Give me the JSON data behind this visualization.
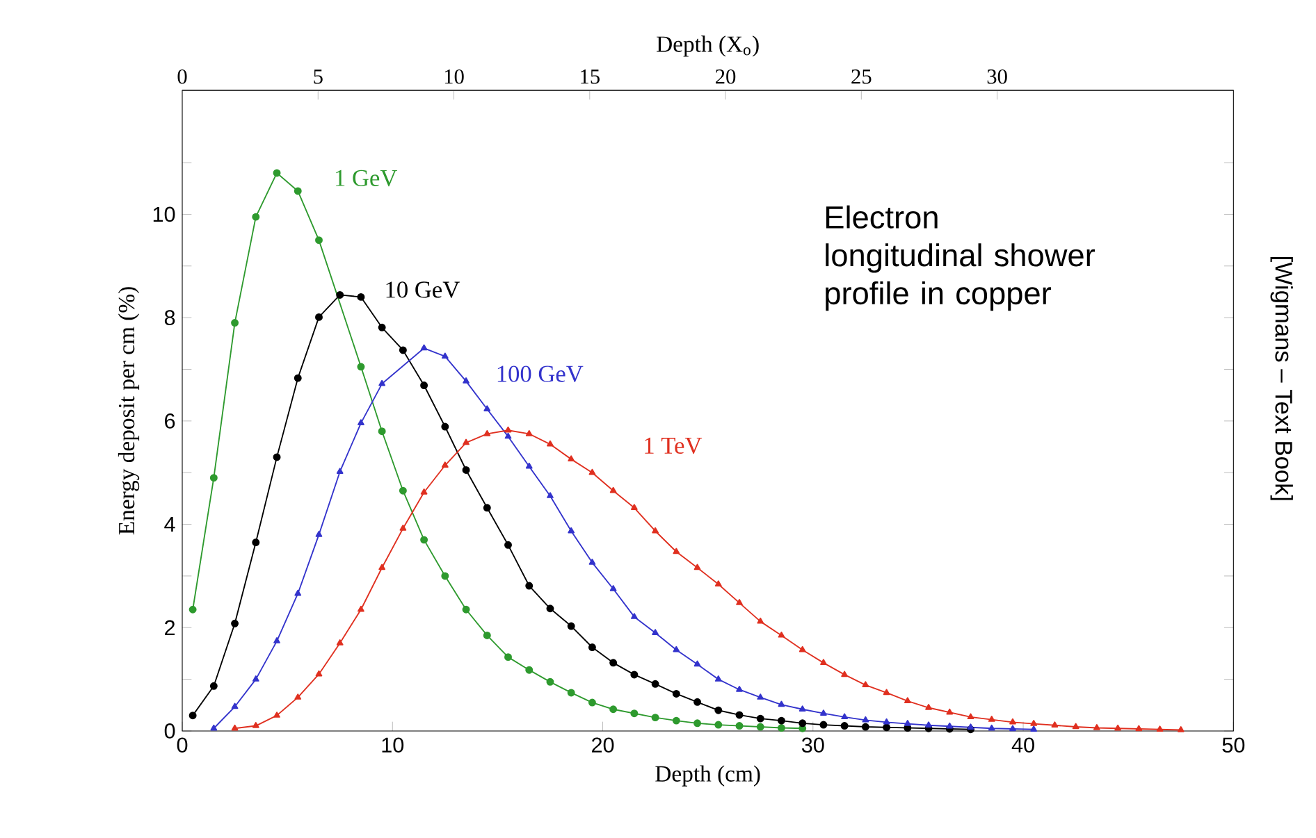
{
  "chart_data": {
    "type": "line",
    "xlabel": "Depth (cm)",
    "ylabel": "Energy deposit per cm (%)",
    "x2label": "Depth (X$_{o}$)",
    "xlim": [
      0,
      50
    ],
    "xticks": [
      0,
      10,
      20,
      30,
      40,
      50
    ],
    "x2lim": [
      0,
      38.7
    ],
    "x2ticks": [
      0,
      5,
      10,
      15,
      20,
      25,
      30
    ],
    "ylim": [
      0,
      12.4
    ],
    "yticks": [
      0,
      {
        "value": 1,
        "label": null
      },
      2,
      {
        "value": 3,
        "label": null
      },
      4,
      {
        "value": 5,
        "label": null
      },
      6,
      {
        "value": 7,
        "label": null
      },
      8,
      {
        "value": 9,
        "label": null
      },
      10,
      {
        "value": 11,
        "label": null
      }
    ],
    "annotations": [
      "Electron longitudinal shower profile in copper",
      "[Wigmans – Text Book]"
    ],
    "series": [
      {
        "name": "1 GeV",
        "color": "#2e9a2e",
        "marker": "circle",
        "x": [
          0.5,
          1.5,
          2.5,
          3.5,
          4.5,
          5.5,
          6.5,
          7.5,
          8.5,
          9.5,
          10.5,
          11.5,
          12.5,
          13.5,
          14.5,
          15.5,
          16.5,
          17.5,
          18.5,
          19.5,
          20.5,
          21.5,
          22.5,
          23.5,
          24.5,
          25.5,
          26.5,
          27.5,
          28.5,
          29.5
        ],
        "values": [
          2.35,
          4.9,
          7.9,
          9.95,
          10.8,
          10.45,
          9.5,
          null,
          7.05,
          5.8,
          4.65,
          3.7,
          3.0,
          2.35,
          1.85,
          1.43,
          1.18,
          0.95,
          0.74,
          0.55,
          0.42,
          0.34,
          0.26,
          0.2,
          0.15,
          0.12,
          0.1,
          0.08,
          0.06,
          0.05
        ]
      },
      {
        "name": "10 GeV",
        "color": "#000000",
        "marker": "circle",
        "x": [
          0.5,
          1.5,
          2.5,
          3.5,
          4.5,
          5.5,
          6.5,
          7.5,
          8.5,
          9.5,
          10.5,
          11.5,
          12.5,
          13.5,
          14.5,
          15.5,
          16.5,
          17.5,
          18.5,
          19.5,
          20.5,
          21.5,
          22.5,
          23.5,
          24.5,
          25.5,
          26.5,
          27.5,
          28.5,
          29.5,
          30.5,
          31.5,
          32.5,
          33.5,
          34.5,
          35.5,
          36.5,
          37.5
        ],
        "values": [
          0.3,
          0.87,
          2.08,
          3.65,
          5.3,
          6.83,
          8.01,
          8.44,
          8.4,
          7.81,
          7.37,
          6.69,
          5.89,
          5.05,
          4.32,
          3.6,
          2.81,
          2.37,
          2.03,
          1.62,
          1.32,
          1.09,
          0.91,
          0.72,
          0.56,
          0.4,
          0.31,
          0.24,
          0.2,
          0.15,
          0.12,
          0.1,
          0.08,
          0.07,
          0.06,
          0.05,
          0.04,
          0.03
        ]
      },
      {
        "name": "100 GeV",
        "color": "#3333cc",
        "marker": "triangle",
        "x": [
          1.5,
          2.5,
          3.5,
          4.5,
          5.5,
          6.5,
          7.5,
          8.5,
          9.5,
          10.5,
          11.5,
          12.5,
          13.5,
          14.5,
          15.5,
          16.5,
          17.5,
          18.5,
          19.5,
          20.5,
          21.5,
          22.5,
          23.5,
          24.5,
          25.5,
          26.5,
          27.5,
          28.5,
          29.5,
          30.5,
          31.5,
          32.5,
          33.5,
          34.5,
          35.5,
          36.5,
          37.5,
          38.5,
          39.5,
          40.5
        ],
        "values": [
          0.05,
          0.47,
          1.0,
          1.74,
          2.66,
          3.8,
          5.02,
          5.96,
          6.72,
          null,
          7.41,
          7.25,
          6.77,
          6.23,
          5.7,
          5.12,
          4.55,
          3.87,
          3.26,
          2.75,
          2.21,
          1.9,
          1.57,
          1.29,
          1.0,
          0.8,
          0.65,
          0.51,
          0.42,
          0.34,
          0.27,
          0.21,
          0.17,
          0.14,
          0.11,
          0.09,
          0.07,
          0.05,
          0.04,
          0.03
        ]
      },
      {
        "name": "1 TeV",
        "color": "#e03020",
        "marker": "triangle",
        "x": [
          2.5,
          3.5,
          4.5,
          5.5,
          6.5,
          7.5,
          8.5,
          9.5,
          10.5,
          11.5,
          12.5,
          13.5,
          14.5,
          15.5,
          16.5,
          17.5,
          18.5,
          19.5,
          20.5,
          21.5,
          22.5,
          23.5,
          24.5,
          25.5,
          26.5,
          27.5,
          28.5,
          29.5,
          30.5,
          31.5,
          32.5,
          33.5,
          34.5,
          35.5,
          36.5,
          37.5,
          38.5,
          39.5,
          40.5,
          41.5,
          42.5,
          43.5,
          44.5,
          45.5,
          46.5,
          47.5
        ],
        "values": [
          0.05,
          0.1,
          0.3,
          0.65,
          1.1,
          1.7,
          2.35,
          3.16,
          3.92,
          4.62,
          5.14,
          5.58,
          5.75,
          5.82,
          5.75,
          5.55,
          5.26,
          5.0,
          4.65,
          4.32,
          3.87,
          3.47,
          3.16,
          2.84,
          2.48,
          2.12,
          1.85,
          1.57,
          1.32,
          1.09,
          0.89,
          0.74,
          0.58,
          0.45,
          0.36,
          0.27,
          0.22,
          0.17,
          0.14,
          0.11,
          0.08,
          0.06,
          0.05,
          0.04,
          0.03,
          0.02
        ]
      }
    ]
  }
}
